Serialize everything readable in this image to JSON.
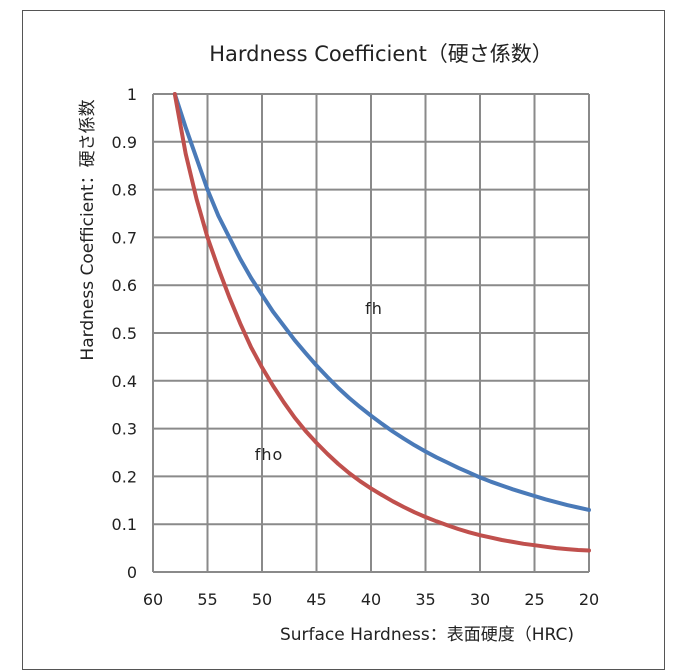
{
  "chart_data": {
    "type": "line",
    "title": "Hardness Coefficient（硬さ係数）",
    "xlabel": "Surface Hardness：表面硬度（HRC)",
    "ylabel": "Hardness Coefficient：硬さ係数",
    "xlim": [
      60,
      20
    ],
    "ylim": [
      0,
      1
    ],
    "x_reversed": true,
    "grid": true,
    "xticks": [
      60,
      55,
      50,
      45,
      40,
      35,
      30,
      25,
      20
    ],
    "yticks": [
      0,
      0.1,
      0.2,
      0.3,
      0.4,
      0.5,
      0.6,
      0.7,
      0.8,
      0.9,
      1
    ],
    "xtick_labels": [
      "60",
      "55",
      "50",
      "45",
      "40",
      "35",
      "30",
      "25",
      "20"
    ],
    "ytick_labels": [
      "0",
      "0.1",
      "0.2",
      "0.3",
      "0.4",
      "0.5",
      "0.6",
      "0.7",
      "0.8",
      "0.9",
      "1"
    ],
    "series": [
      {
        "name": "fh",
        "color": "#4a7ab8",
        "x": [
          58,
          57,
          56,
          55,
          54,
          53,
          52,
          51,
          50,
          49,
          48,
          47,
          46,
          45,
          44,
          43,
          42,
          41,
          40,
          39,
          38,
          37,
          36,
          35,
          34,
          33,
          32,
          31,
          30,
          29,
          28,
          27,
          26,
          25,
          24,
          23,
          22,
          21,
          20
        ],
        "y": [
          1.0,
          0.93,
          0.865,
          0.8,
          0.745,
          0.7,
          0.655,
          0.615,
          0.58,
          0.545,
          0.515,
          0.485,
          0.458,
          0.432,
          0.408,
          0.385,
          0.364,
          0.345,
          0.327,
          0.31,
          0.294,
          0.279,
          0.265,
          0.252,
          0.24,
          0.229,
          0.218,
          0.208,
          0.198,
          0.189,
          0.181,
          0.173,
          0.166,
          0.159,
          0.152,
          0.146,
          0.14,
          0.135,
          0.13
        ]
      },
      {
        "name": "fho",
        "color": "#c0504d",
        "x": [
          58,
          57,
          56,
          55,
          54,
          53,
          52,
          51,
          50,
          49,
          48,
          47,
          46,
          45,
          44,
          43,
          42,
          41,
          40,
          39,
          38,
          37,
          36,
          35,
          34,
          33,
          32,
          31,
          30,
          29,
          28,
          27,
          26,
          25,
          24,
          23,
          22,
          21,
          20
        ],
        "y": [
          1.0,
          0.875,
          0.78,
          0.7,
          0.635,
          0.575,
          0.52,
          0.47,
          0.428,
          0.39,
          0.355,
          0.323,
          0.295,
          0.27,
          0.247,
          0.226,
          0.207,
          0.19,
          0.175,
          0.161,
          0.148,
          0.136,
          0.125,
          0.115,
          0.106,
          0.098,
          0.09,
          0.083,
          0.077,
          0.072,
          0.067,
          0.063,
          0.059,
          0.056,
          0.053,
          0.05,
          0.048,
          0.046,
          0.045
        ]
      }
    ],
    "annotations": [
      "fh",
      "fho"
    ]
  }
}
